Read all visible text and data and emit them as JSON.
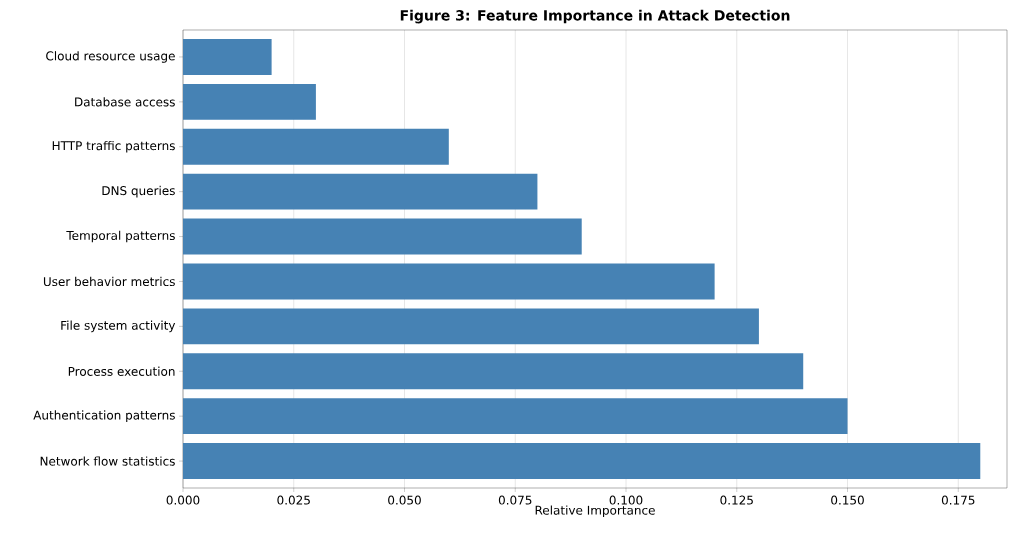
{
  "chart_data": {
    "type": "bar",
    "orientation": "horizontal",
    "title": "Figure 3: Feature Importance in Attack Detection",
    "xlabel": "Relative Importance",
    "categories": [
      "Cloud resource usage",
      "Database access",
      "HTTP traffic patterns",
      "DNS queries",
      "Temporal patterns",
      "User behavior metrics",
      "File system activity",
      "Process execution",
      "Authentication patterns",
      "Network flow statistics"
    ],
    "values": [
      0.02,
      0.03,
      0.06,
      0.08,
      0.09,
      0.12,
      0.13,
      0.14,
      0.15,
      0.18
    ],
    "color": "#4682b4",
    "xlim": [
      0,
      0.186
    ],
    "xticks": [
      {
        "value": 0,
        "label": "0.000"
      },
      {
        "value": 0.025,
        "label": "0.025"
      },
      {
        "value": 0.05,
        "label": "0.050"
      },
      {
        "value": 0.075,
        "label": "0.075"
      },
      {
        "value": 0.1,
        "label": "0.100"
      },
      {
        "value": 0.125,
        "label": "0.125"
      },
      {
        "value": 0.15,
        "label": "0.150"
      },
      {
        "value": 0.175,
        "label": "0.175"
      }
    ],
    "grid": "x"
  }
}
